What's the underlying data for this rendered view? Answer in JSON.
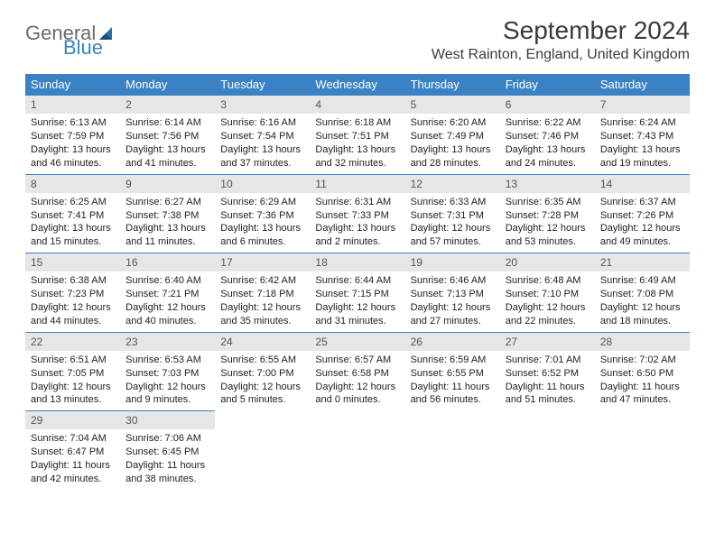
{
  "logo": {
    "text1": "General",
    "text2": "Blue"
  },
  "title": "September 2024",
  "location": "West Rainton, England, United Kingdom",
  "colors": {
    "header_bg": "#3b82c4",
    "header_text": "#ffffff",
    "daynum_bg": "#e6e6e6",
    "daynum_border": "#3b82c4",
    "logo_gray": "#6b6b6b",
    "logo_blue": "#3b82c4"
  },
  "weekdays": [
    "Sunday",
    "Monday",
    "Tuesday",
    "Wednesday",
    "Thursday",
    "Friday",
    "Saturday"
  ],
  "weeks": [
    [
      {
        "n": "1",
        "sr": "Sunrise: 6:13 AM",
        "ss": "Sunset: 7:59 PM",
        "dl": "Daylight: 13 hours and 46 minutes."
      },
      {
        "n": "2",
        "sr": "Sunrise: 6:14 AM",
        "ss": "Sunset: 7:56 PM",
        "dl": "Daylight: 13 hours and 41 minutes."
      },
      {
        "n": "3",
        "sr": "Sunrise: 6:16 AM",
        "ss": "Sunset: 7:54 PM",
        "dl": "Daylight: 13 hours and 37 minutes."
      },
      {
        "n": "4",
        "sr": "Sunrise: 6:18 AM",
        "ss": "Sunset: 7:51 PM",
        "dl": "Daylight: 13 hours and 32 minutes."
      },
      {
        "n": "5",
        "sr": "Sunrise: 6:20 AM",
        "ss": "Sunset: 7:49 PM",
        "dl": "Daylight: 13 hours and 28 minutes."
      },
      {
        "n": "6",
        "sr": "Sunrise: 6:22 AM",
        "ss": "Sunset: 7:46 PM",
        "dl": "Daylight: 13 hours and 24 minutes."
      },
      {
        "n": "7",
        "sr": "Sunrise: 6:24 AM",
        "ss": "Sunset: 7:43 PM",
        "dl": "Daylight: 13 hours and 19 minutes."
      }
    ],
    [
      {
        "n": "8",
        "sr": "Sunrise: 6:25 AM",
        "ss": "Sunset: 7:41 PM",
        "dl": "Daylight: 13 hours and 15 minutes."
      },
      {
        "n": "9",
        "sr": "Sunrise: 6:27 AM",
        "ss": "Sunset: 7:38 PM",
        "dl": "Daylight: 13 hours and 11 minutes."
      },
      {
        "n": "10",
        "sr": "Sunrise: 6:29 AM",
        "ss": "Sunset: 7:36 PM",
        "dl": "Daylight: 13 hours and 6 minutes."
      },
      {
        "n": "11",
        "sr": "Sunrise: 6:31 AM",
        "ss": "Sunset: 7:33 PM",
        "dl": "Daylight: 13 hours and 2 minutes."
      },
      {
        "n": "12",
        "sr": "Sunrise: 6:33 AM",
        "ss": "Sunset: 7:31 PM",
        "dl": "Daylight: 12 hours and 57 minutes."
      },
      {
        "n": "13",
        "sr": "Sunrise: 6:35 AM",
        "ss": "Sunset: 7:28 PM",
        "dl": "Daylight: 12 hours and 53 minutes."
      },
      {
        "n": "14",
        "sr": "Sunrise: 6:37 AM",
        "ss": "Sunset: 7:26 PM",
        "dl": "Daylight: 12 hours and 49 minutes."
      }
    ],
    [
      {
        "n": "15",
        "sr": "Sunrise: 6:38 AM",
        "ss": "Sunset: 7:23 PM",
        "dl": "Daylight: 12 hours and 44 minutes."
      },
      {
        "n": "16",
        "sr": "Sunrise: 6:40 AM",
        "ss": "Sunset: 7:21 PM",
        "dl": "Daylight: 12 hours and 40 minutes."
      },
      {
        "n": "17",
        "sr": "Sunrise: 6:42 AM",
        "ss": "Sunset: 7:18 PM",
        "dl": "Daylight: 12 hours and 35 minutes."
      },
      {
        "n": "18",
        "sr": "Sunrise: 6:44 AM",
        "ss": "Sunset: 7:15 PM",
        "dl": "Daylight: 12 hours and 31 minutes."
      },
      {
        "n": "19",
        "sr": "Sunrise: 6:46 AM",
        "ss": "Sunset: 7:13 PM",
        "dl": "Daylight: 12 hours and 27 minutes."
      },
      {
        "n": "20",
        "sr": "Sunrise: 6:48 AM",
        "ss": "Sunset: 7:10 PM",
        "dl": "Daylight: 12 hours and 22 minutes."
      },
      {
        "n": "21",
        "sr": "Sunrise: 6:49 AM",
        "ss": "Sunset: 7:08 PM",
        "dl": "Daylight: 12 hours and 18 minutes."
      }
    ],
    [
      {
        "n": "22",
        "sr": "Sunrise: 6:51 AM",
        "ss": "Sunset: 7:05 PM",
        "dl": "Daylight: 12 hours and 13 minutes."
      },
      {
        "n": "23",
        "sr": "Sunrise: 6:53 AM",
        "ss": "Sunset: 7:03 PM",
        "dl": "Daylight: 12 hours and 9 minutes."
      },
      {
        "n": "24",
        "sr": "Sunrise: 6:55 AM",
        "ss": "Sunset: 7:00 PM",
        "dl": "Daylight: 12 hours and 5 minutes."
      },
      {
        "n": "25",
        "sr": "Sunrise: 6:57 AM",
        "ss": "Sunset: 6:58 PM",
        "dl": "Daylight: 12 hours and 0 minutes."
      },
      {
        "n": "26",
        "sr": "Sunrise: 6:59 AM",
        "ss": "Sunset: 6:55 PM",
        "dl": "Daylight: 11 hours and 56 minutes."
      },
      {
        "n": "27",
        "sr": "Sunrise: 7:01 AM",
        "ss": "Sunset: 6:52 PM",
        "dl": "Daylight: 11 hours and 51 minutes."
      },
      {
        "n": "28",
        "sr": "Sunrise: 7:02 AM",
        "ss": "Sunset: 6:50 PM",
        "dl": "Daylight: 11 hours and 47 minutes."
      }
    ],
    [
      {
        "n": "29",
        "sr": "Sunrise: 7:04 AM",
        "ss": "Sunset: 6:47 PM",
        "dl": "Daylight: 11 hours and 42 minutes."
      },
      {
        "n": "30",
        "sr": "Sunrise: 7:06 AM",
        "ss": "Sunset: 6:45 PM",
        "dl": "Daylight: 11 hours and 38 minutes."
      },
      null,
      null,
      null,
      null,
      null
    ]
  ]
}
